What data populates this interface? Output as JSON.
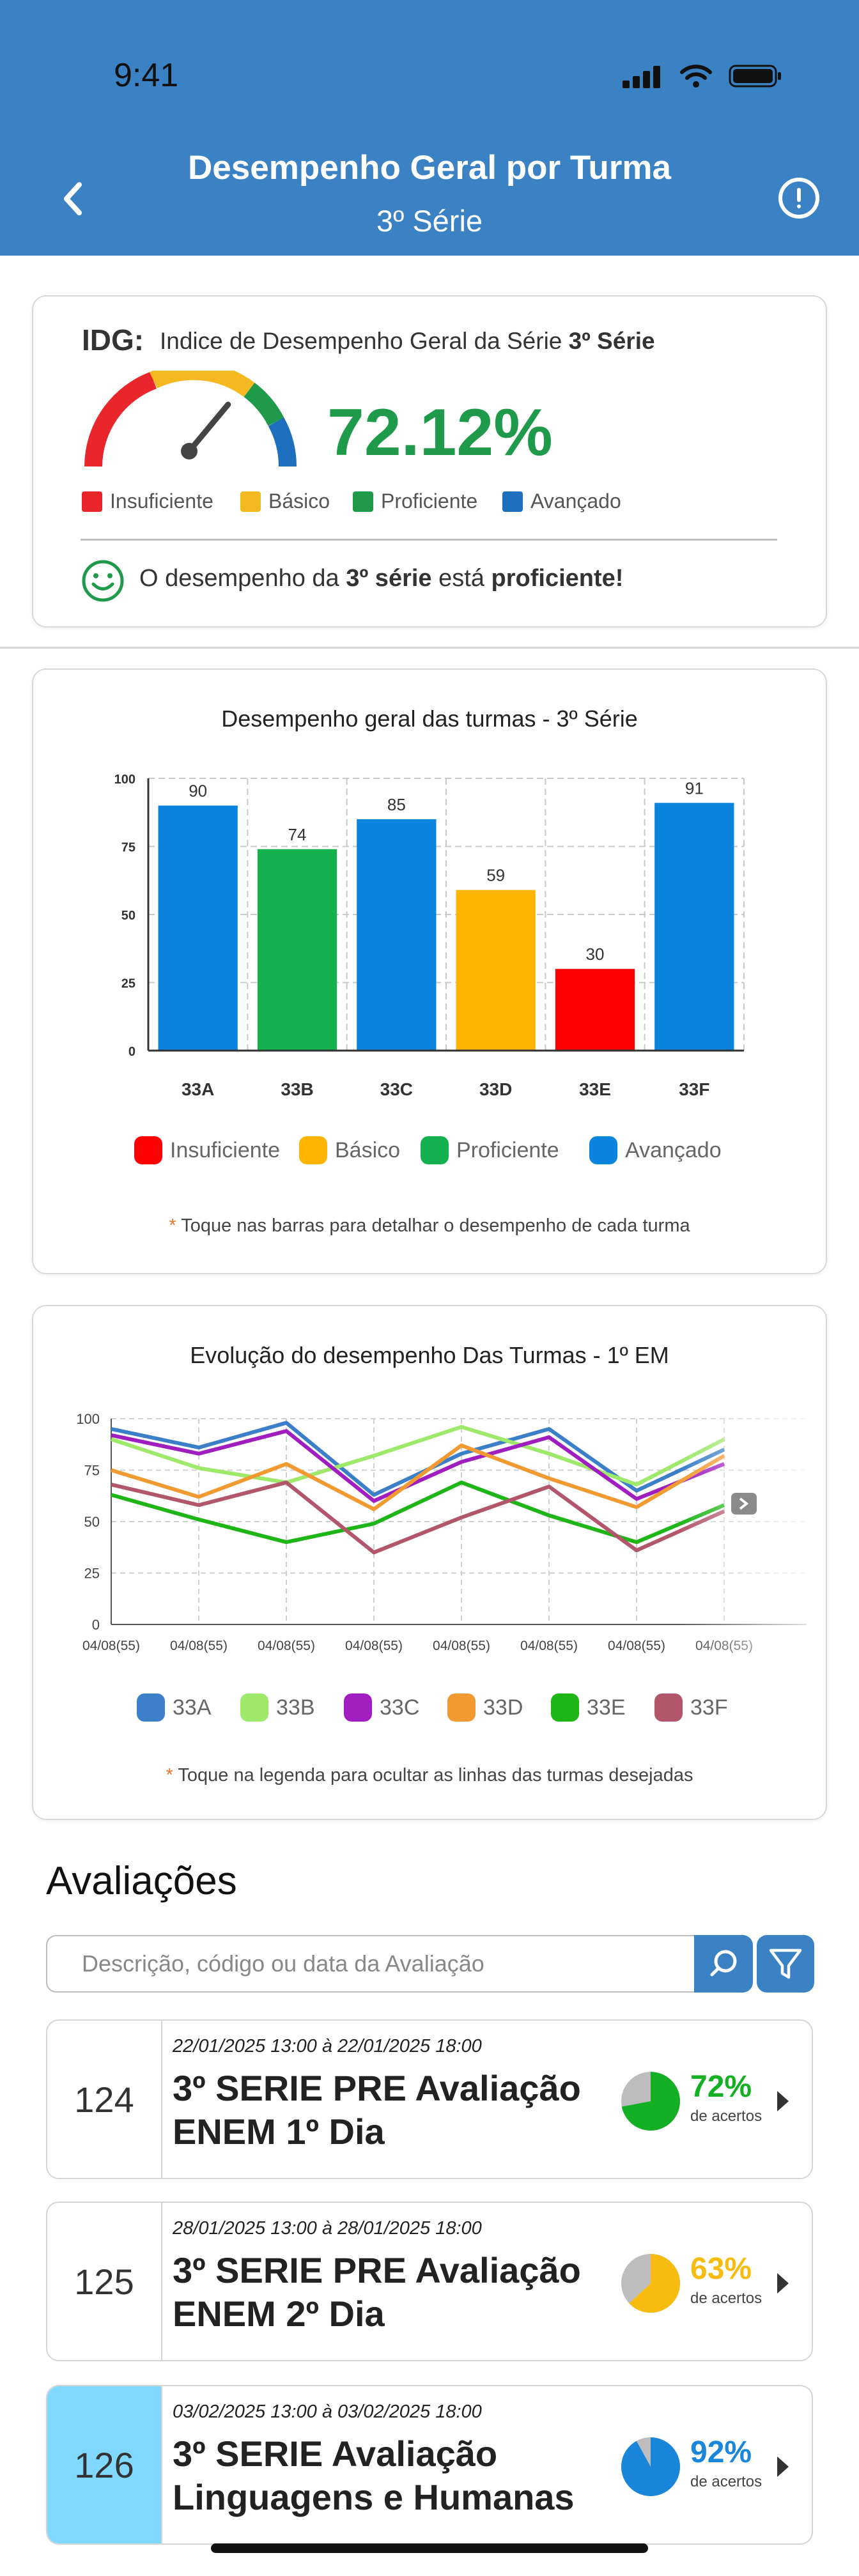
{
  "status_bar": {
    "time": "9:41"
  },
  "header": {
    "title": "Desempenho Geral por Turma",
    "subtitle": "3º Série"
  },
  "idg": {
    "label": "IDG:",
    "description_prefix": "Indice de Desempenho Geral da Série ",
    "description_bold": "3º Série",
    "value": "72.12%",
    "gauge_fraction": 0.7212,
    "legend": [
      {
        "label": "Insuficiente",
        "color": "#e8262b"
      },
      {
        "label": "Básico",
        "color": "#f5b820"
      },
      {
        "label": "Proficiente",
        "color": "#1f9a4a"
      },
      {
        "label": "Avançado",
        "color": "#1f6fbf"
      }
    ],
    "status_prefix": "O desempenho da ",
    "status_bold1": "3º série",
    "status_middle": " está ",
    "status_bold2": "proficiente!"
  },
  "bar_chart": {
    "title": "Desempenho geral das turmas - 3º Série",
    "legend": [
      {
        "label": "Insuficiente",
        "color": "#ff0000"
      },
      {
        "label": "Básico",
        "color": "#ffb400"
      },
      {
        "label": "Proficiente",
        "color": "#14b24e"
      },
      {
        "label": "Avançado",
        "color": "#0a84dc"
      }
    ],
    "note_star": "*",
    "note": "Toque nas barras para detalhar o desempenho de cada turma"
  },
  "line_chart": {
    "title": "Evolução do desempenho Das Turmas - 1º EM",
    "note_star": "*",
    "note": "Toque na legenda para ocultar as linhas das turmas desejadas"
  },
  "chart_data": [
    {
      "type": "bar",
      "title": "Desempenho geral das turmas - 3º Série",
      "categories": [
        "33A",
        "33B",
        "33C",
        "33D",
        "33E",
        "33F"
      ],
      "values": [
        90,
        74,
        85,
        59,
        30,
        91
      ],
      "bar_colors": [
        "#0a84dc",
        "#14b24e",
        "#0a84dc",
        "#ffb400",
        "#ff0000",
        "#0a84dc"
      ],
      "yticks": [
        0,
        25,
        50,
        75,
        100
      ],
      "ylim": [
        0,
        100
      ],
      "grid": true,
      "legend": [
        "Insuficiente",
        "Básico",
        "Proficiente",
        "Avançado"
      ],
      "legend_placement": "bottom"
    },
    {
      "type": "line",
      "title": "Evolução do desempenho Das Turmas - 1º EM",
      "x": [
        "04/08(55)",
        "04/08(55)",
        "04/08(55)",
        "04/08(55)",
        "04/08(55)",
        "04/08(55)",
        "04/08(55)",
        "04/08(55)"
      ],
      "yticks": [
        0,
        25,
        50,
        75,
        100
      ],
      "ylim": [
        0,
        100
      ],
      "grid": true,
      "legend_placement": "bottom",
      "series": [
        {
          "name": "33A",
          "color": "#3a7fc8",
          "values": [
            95,
            86,
            98,
            63,
            83,
            95,
            65,
            85
          ]
        },
        {
          "name": "33B",
          "color": "#9ee86a",
          "values": [
            90,
            76,
            69,
            82,
            96,
            83,
            68,
            90
          ]
        },
        {
          "name": "33C",
          "color": "#a01ec0",
          "values": [
            92,
            83,
            94,
            60,
            79,
            91,
            61,
            78
          ]
        },
        {
          "name": "33D",
          "color": "#f29a32",
          "values": [
            75,
            62,
            78,
            56,
            87,
            71,
            57,
            82
          ]
        },
        {
          "name": "33E",
          "color": "#1eb516",
          "values": [
            63,
            51,
            40,
            49,
            69,
            53,
            40,
            58
          ]
        },
        {
          "name": "33F",
          "color": "#b2566c",
          "values": [
            68,
            58,
            69,
            35,
            52,
            67,
            36,
            55
          ]
        }
      ]
    }
  ],
  "avaliacoes": {
    "heading": "Avaliações",
    "search_placeholder": "Descrição, código ou data da Avaliação",
    "items": [
      {
        "code": "124",
        "date": "22/01/2025 13:00 à 22/01/2025 18:00",
        "name": "3º SERIE PRE Avaliação ENEM 1º Dia",
        "percent": "72%",
        "fraction": 0.72,
        "percent_label": "de acertos",
        "color": "#14b024"
      },
      {
        "code": "125",
        "date": "28/01/2025 13:00 à 28/01/2025 18:00",
        "name": "3º SERIE PRE Avaliação ENEM 2º Dia",
        "percent": "63%",
        "fraction": 0.63,
        "percent_label": "de acertos",
        "color": "#f8bb10"
      },
      {
        "code": "126",
        "date": "03/02/2025 13:00 à 03/02/2025 18:00",
        "name": "3º SERIE Avaliação Linguagens e Humanas",
        "percent": "92%",
        "fraction": 0.92,
        "percent_label": "de acertos",
        "color": "#1a86d9",
        "highlight": "#80d8ff"
      }
    ]
  }
}
